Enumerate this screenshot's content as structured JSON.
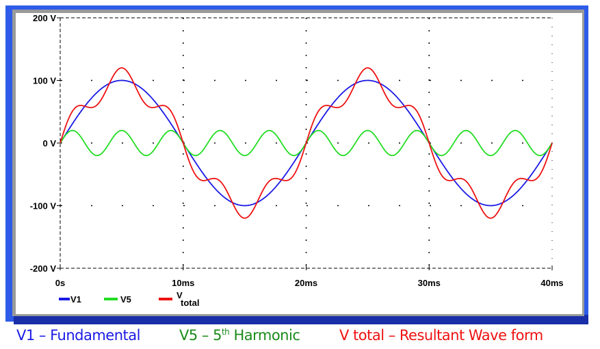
{
  "chart_data": {
    "type": "line",
    "title": "",
    "xlabel": "",
    "ylabel": "",
    "xlim": [
      0,
      40
    ],
    "ylim": [
      -200,
      200
    ],
    "x_unit": "ms",
    "x_ticks": [
      0,
      10,
      20,
      30,
      40
    ],
    "x_tick_labels": [
      "0s",
      "10ms",
      "20ms",
      "30ms",
      "40ms"
    ],
    "y_ticks": [
      200,
      100,
      0,
      -100,
      -200
    ],
    "y_tick_labels": [
      "200 V",
      "100 V",
      "0 V",
      "-100 V",
      "-200 V"
    ],
    "grid": true,
    "legend_position": "bottom-left",
    "series": [
      {
        "name": "V1",
        "color": "#1a1ae6",
        "formula": "sine",
        "amplitude": 100,
        "frequency_hz": 50,
        "components": [
          [
            100,
            50
          ]
        ]
      },
      {
        "name": "V5",
        "color": "#22dd22",
        "formula": "sine",
        "amplitude": 20,
        "frequency_hz": 250,
        "components": [
          [
            20,
            250
          ]
        ]
      },
      {
        "name": "Vtotal",
        "color": "#ee1111",
        "formula": "sum",
        "components": [
          [
            100,
            50
          ],
          [
            20,
            250
          ]
        ]
      }
    ],
    "legend": [
      {
        "label": "V1"
      },
      {
        "label": "V5"
      },
      {
        "label_main": "V",
        "label_sub": "total"
      }
    ]
  },
  "captions": {
    "v1": "V1 – Fundamental",
    "v5_pre": "V5 – 5",
    "v5_sup": "th",
    "v5_post": " Harmonic",
    "vtotal": "V total – Resultant Wave form"
  }
}
